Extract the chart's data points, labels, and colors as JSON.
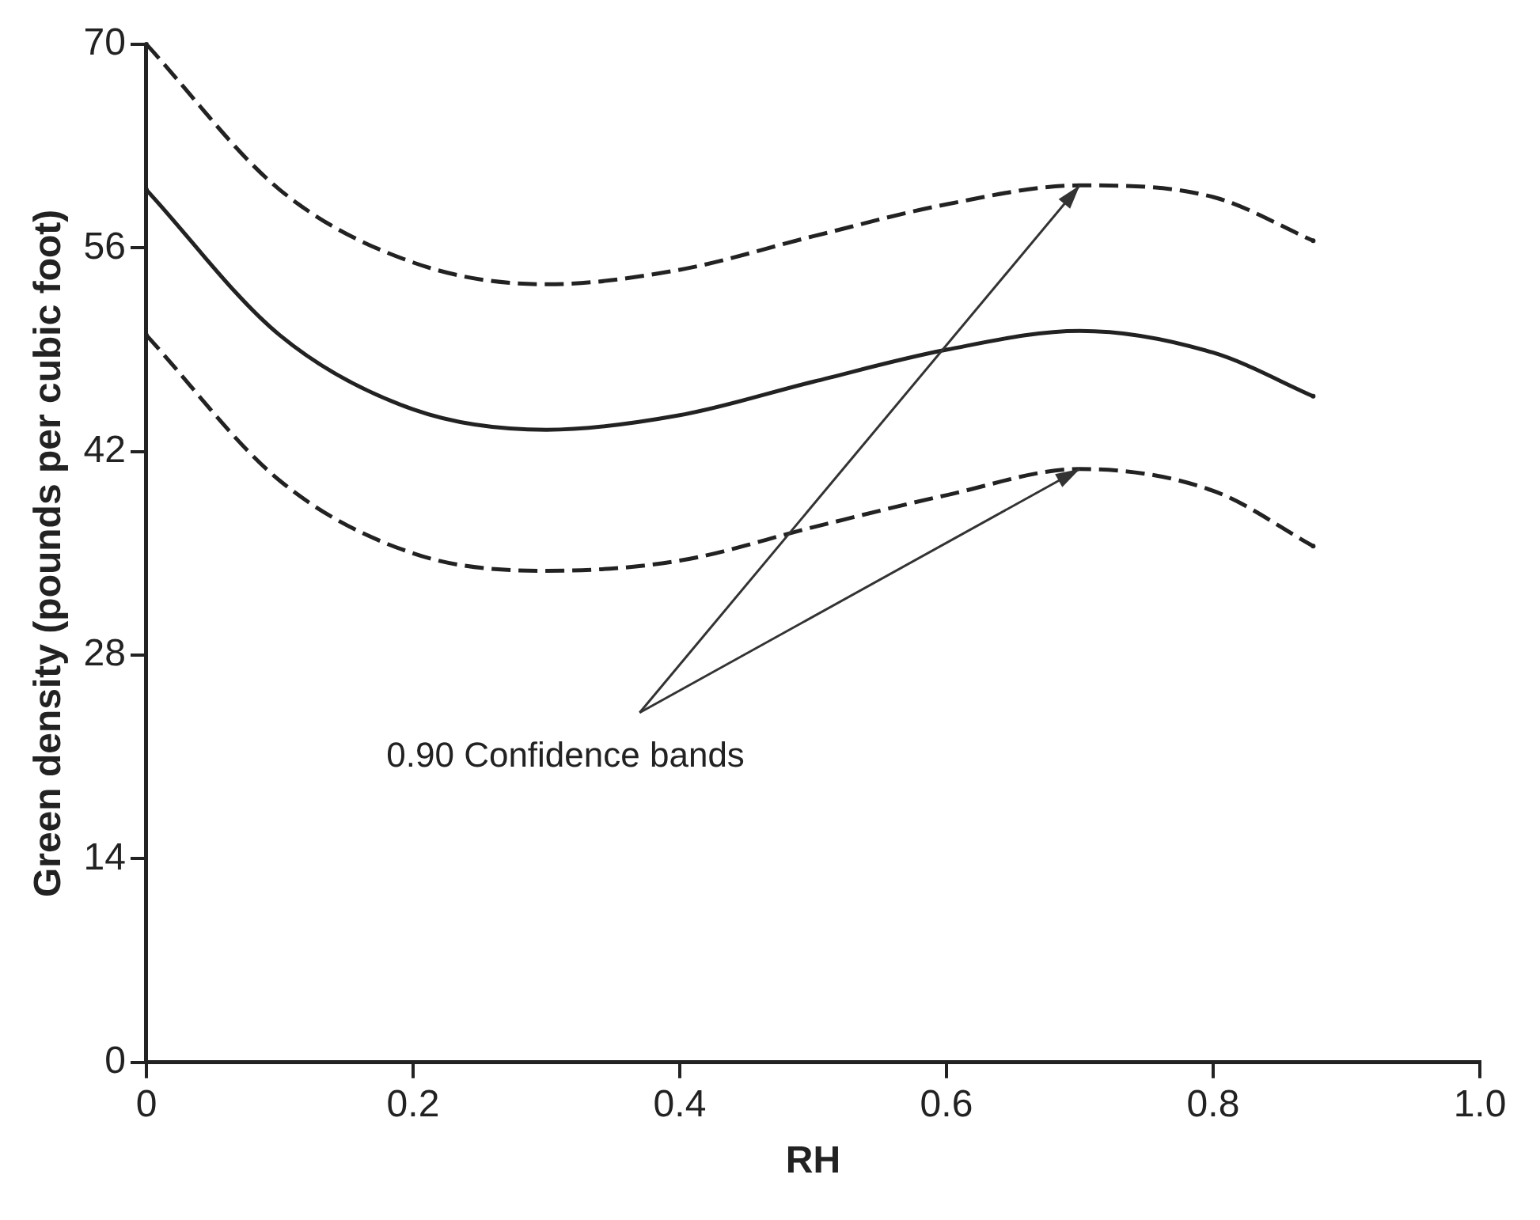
{
  "chart_data": {
    "type": "line",
    "xlabel": "RH",
    "ylabel": "Green density (pounds per cubic foot)",
    "x": [
      0,
      0.1,
      0.2,
      0.3,
      0.4,
      0.5,
      0.6,
      0.7,
      0.8,
      0.875
    ],
    "series": [
      {
        "color": "#222222",
        "line_style": "dashed",
        "values": [
          70,
          60,
          55,
          53.5,
          54.5,
          56.8,
          59,
          60.3,
          59.5,
          56.5
        ]
      },
      {
        "color": "#222222",
        "line_style": "solid",
        "values": [
          60,
          50,
          44.9,
          43.5,
          44.5,
          46.8,
          49,
          50.3,
          48.8,
          45.8
        ]
      },
      {
        "color": "#222222",
        "line_style": "dashed",
        "values": [
          50,
          40,
          35,
          33.8,
          34.5,
          36.8,
          39,
          40.8,
          39.3,
          35.5
        ]
      }
    ],
    "xlim": [
      0,
      1
    ],
    "xticks": [
      0,
      0.2,
      0.4,
      0.6,
      0.8,
      {
        "value": 1,
        "label": "1.0"
      }
    ],
    "ylim": [
      0,
      70
    ],
    "yticks": [
      0,
      14,
      28,
      42,
      56,
      70
    ],
    "grid": false,
    "legend": false,
    "marker": "none",
    "annotations": [
      {
        "text": "0.90 Confidence bands",
        "x": 0.7,
        "y": 40.8
      }
    ]
  }
}
